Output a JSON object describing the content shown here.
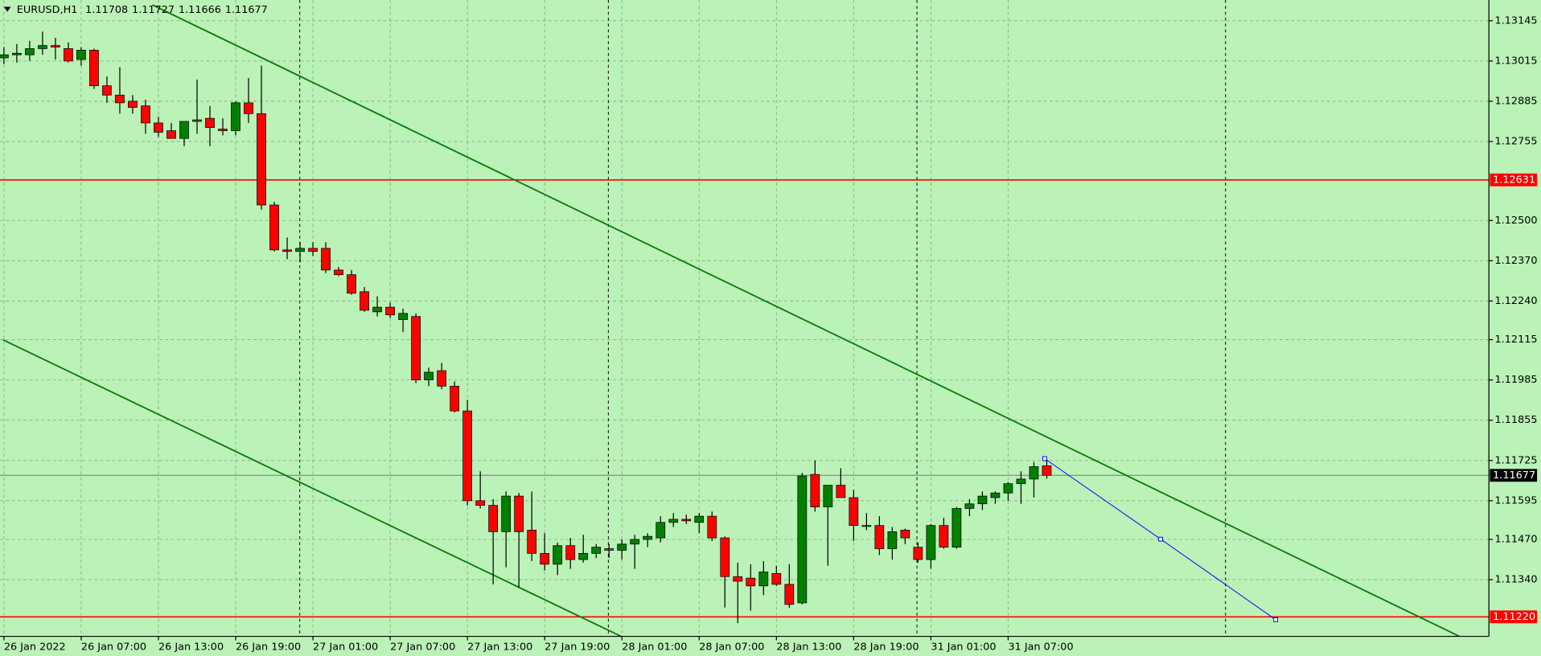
{
  "chart_data": {
    "type": "candlestick",
    "title": "EURUSD,H1",
    "categories": [
      "26 Jan 2022",
      null,
      null,
      null,
      null,
      null,
      "26 Jan 07:00",
      null,
      null,
      null,
      null,
      null,
      "26 Jan 13:00",
      null,
      null,
      null,
      null,
      null,
      "26 Jan 19:00",
      null,
      null,
      null,
      null,
      null,
      "27 Jan 01:00",
      null,
      null,
      null,
      null,
      null,
      "27 Jan 07:00",
      null,
      null,
      null,
      null,
      null,
      "27 Jan 13:00",
      null,
      null,
      null,
      null,
      null,
      "27 Jan 19:00",
      null,
      null,
      null,
      null,
      null,
      "28 Jan 01:00",
      null,
      null,
      null,
      null,
      null,
      "28 Jan 07:00",
      null,
      null,
      null,
      null,
      null,
      "28 Jan 13:00",
      null,
      null,
      null,
      null,
      null,
      "28 Jan 19:00",
      null,
      null,
      null,
      null,
      null,
      "31 Jan 01:00",
      null,
      null,
      null,
      null,
      null,
      "31 Jan 07:00",
      null,
      null,
      null
    ],
    "open": [
      1.13025,
      1.13035,
      1.13035,
      1.13055,
      1.13065,
      1.13055,
      1.1302,
      1.1305,
      1.12935,
      1.12905,
      1.12885,
      1.1287,
      1.12815,
      1.1279,
      1.12765,
      1.1282,
      1.1283,
      1.12795,
      1.1279,
      1.1288,
      1.12845,
      1.1255,
      1.12405,
      1.124,
      1.1241,
      1.1241,
      1.1234,
      1.12325,
      1.1227,
      1.12205,
      1.1222,
      1.1218,
      1.1219,
      1.11985,
      1.12015,
      1.11965,
      1.11885,
      1.11595,
      1.1158,
      1.11495,
      1.1161,
      1.115,
      1.11425,
      1.1139,
      1.1145,
      1.11405,
      1.11425,
      1.1144,
      1.11435,
      1.11455,
      1.1147,
      1.11475,
      1.11525,
      1.11535,
      1.11525,
      1.11545,
      1.11475,
      1.1135,
      1.11345,
      1.1132,
      1.1136,
      1.11325,
      1.11265,
      1.1168,
      1.11575,
      1.11645,
      1.11605,
      1.11515,
      1.11515,
      1.1144,
      1.115,
      1.11445,
      1.11405,
      1.11515,
      1.11445,
      1.1157,
      1.11585,
      1.11605,
      1.1162,
      1.1165,
      1.11665,
      1.11708
    ],
    "high": [
      1.1306,
      1.1307,
      1.1308,
      1.1311,
      1.1309,
      1.13075,
      1.1306,
      1.13055,
      1.12965,
      1.12995,
      1.12905,
      1.1289,
      1.12835,
      1.12815,
      1.128,
      1.12955,
      1.1287,
      1.1283,
      1.12885,
      1.1296,
      1.13,
      1.1256,
      1.12445,
      1.1243,
      1.1243,
      1.1243,
      1.1235,
      1.1234,
      1.12285,
      1.12255,
      1.12235,
      1.12215,
      1.122,
      1.12025,
      1.1204,
      1.1198,
      1.1192,
      1.1169,
      1.116,
      1.11625,
      1.1162,
      1.11625,
      1.1149,
      1.1146,
      1.11475,
      1.11485,
      1.11455,
      1.11455,
      1.1147,
      1.11485,
      1.1149,
      1.11545,
      1.11555,
      1.1155,
      1.11555,
      1.1156,
      1.1148,
      1.11395,
      1.1139,
      1.114,
      1.11385,
      1.1139,
      1.11685,
      1.11725,
      1.1164,
      1.117,
      1.1163,
      1.11555,
      1.11545,
      1.1151,
      1.11505,
      1.1146,
      1.1152,
      1.1154,
      1.11575,
      1.116,
      1.11625,
      1.11625,
      1.11655,
      1.1169,
      1.1172,
      1.11727
    ],
    "low": [
      1.13005,
      1.1301,
      1.13015,
      1.13035,
      1.1302,
      1.1301,
      1.13,
      1.12925,
      1.1288,
      1.12845,
      1.12845,
      1.1278,
      1.1277,
      1.12765,
      1.1274,
      1.1278,
      1.1274,
      1.12775,
      1.12775,
      1.12815,
      1.12535,
      1.124,
      1.12375,
      1.12365,
      1.12385,
      1.1233,
      1.1232,
      1.1226,
      1.12205,
      1.1219,
      1.12185,
      1.1214,
      1.11975,
      1.11965,
      1.11955,
      1.1188,
      1.1158,
      1.1157,
      1.11325,
      1.1138,
      1.11315,
      1.114,
      1.1137,
      1.11355,
      1.11375,
      1.11395,
      1.1141,
      1.1141,
      1.11405,
      1.11375,
      1.11445,
      1.1146,
      1.1151,
      1.1152,
      1.1149,
      1.11465,
      1.1125,
      1.112,
      1.1124,
      1.1129,
      1.1132,
      1.1125,
      1.1126,
      1.1156,
      1.11385,
      1.11615,
      1.11465,
      1.115,
      1.1142,
      1.11405,
      1.11455,
      1.11395,
      1.11375,
      1.1144,
      1.1144,
      1.11545,
      1.11565,
      1.11585,
      1.11595,
      1.11585,
      1.11605,
      1.11666
    ],
    "close": [
      1.13035,
      1.1304,
      1.13055,
      1.13065,
      1.1306,
      1.13015,
      1.1305,
      1.12935,
      1.12905,
      1.1288,
      1.12865,
      1.12815,
      1.12785,
      1.12765,
      1.1282,
      1.12825,
      1.128,
      1.1279,
      1.1288,
      1.12845,
      1.1255,
      1.12405,
      1.124,
      1.1241,
      1.124,
      1.1234,
      1.12325,
      1.12265,
      1.1221,
      1.1222,
      1.12195,
      1.122,
      1.11985,
      1.1201,
      1.11965,
      1.11885,
      1.11595,
      1.1158,
      1.11495,
      1.1161,
      1.11495,
      1.11425,
      1.1139,
      1.1145,
      1.11405,
      1.11425,
      1.11445,
      1.11435,
      1.11455,
      1.1147,
      1.1148,
      1.11525,
      1.11535,
      1.1153,
      1.11545,
      1.11475,
      1.1135,
      1.11335,
      1.1132,
      1.11365,
      1.11325,
      1.1126,
      1.11675,
      1.11575,
      1.11645,
      1.11605,
      1.11515,
      1.11515,
      1.1144,
      1.11495,
      1.11475,
      1.11405,
      1.11515,
      1.11445,
      1.1157,
      1.11585,
      1.1161,
      1.1162,
      1.1165,
      1.11665,
      1.11705,
      1.11677
    ],
    "up_color": "#008000",
    "down_color": "#ff0000",
    "ylim": [
      1.11157,
      1.13212
    ],
    "yticks": [
      1.13145,
      1.13015,
      1.12885,
      1.12755,
      {
        "value": 1.125,
        "label": "1.12500"
      },
      {
        "value": 1.1237,
        "label": "1.12370"
      },
      {
        "value": 1.1224,
        "label": "1.12240"
      },
      1.12115,
      1.11985,
      1.11855,
      1.11725,
      1.11595,
      {
        "value": 1.1147,
        "label": "1.11470"
      },
      {
        "value": 1.1134,
        "label": "1.11340"
      }
    ],
    "grid": true,
    "levels": [
      {
        "value": 1.12631,
        "color": "#ff0000"
      },
      {
        "value": {
          "value": 1.1122,
          "label": "1.11220"
        },
        "color": "#ff0000"
      },
      {
        "value": 1.11677,
        "color": "#000000"
      }
    ]
  }
}
